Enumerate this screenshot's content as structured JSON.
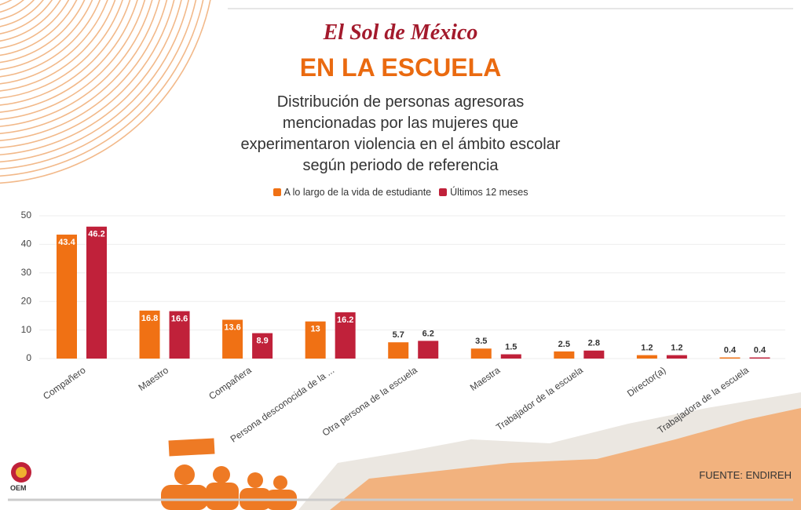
{
  "brand": "El Sol de México",
  "source": "FUENTE: ENDIREH",
  "logo": "OEM",
  "chart_data": {
    "type": "bar",
    "title": "EN LA ESCUELA",
    "subtitle": "Distribución de personas agresoras mencionadas por las mujeres que experimentaron violencia en el ámbito escolar según periodo de referencia",
    "categories": [
      "Compañero",
      "Maestro",
      "Compañera",
      "Persona desconocida de la ...",
      "Otra persona de la escuela",
      "Maestra",
      "Trabajador de la escuela",
      "Director(a)",
      "Trabajadora de la escuela"
    ],
    "series": [
      {
        "name": "A lo largo de la vida de estudiante",
        "color": "#f07114",
        "values": [
          43.4,
          16.8,
          13.6,
          13,
          5.7,
          3.5,
          2.5,
          1.2,
          0.4
        ]
      },
      {
        "name": "Últimos 12 meses",
        "color": "#c0213a",
        "values": [
          46.2,
          16.6,
          8.9,
          16.2,
          6.2,
          1.5,
          2.8,
          1.2,
          0.4
        ]
      }
    ],
    "ylim": [
      0,
      50
    ],
    "yticks": [
      0,
      10,
      20,
      30,
      40,
      50
    ],
    "grid": true,
    "legend": "top"
  }
}
